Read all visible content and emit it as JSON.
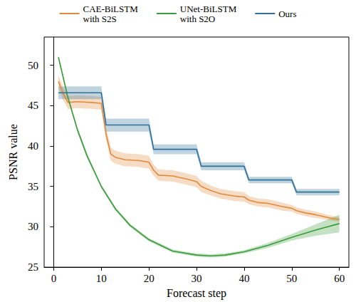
{
  "chart_data": {
    "type": "line",
    "x_label": "Forecast step",
    "y_label": "PSNR value",
    "xlim": [
      -2,
      62
    ],
    "ylim": [
      25,
      53.5
    ],
    "xticks": [
      0,
      10,
      20,
      30,
      40,
      50,
      60
    ],
    "yticks": [
      25,
      30,
      35,
      40,
      45,
      50
    ],
    "grid": false,
    "legend": "top",
    "series": [
      {
        "name": "CAE-BiLSTM\nwith S2S",
        "color": "#e08a3c",
        "x": [
          1,
          2,
          3,
          5,
          8,
          10,
          11,
          12,
          13,
          15,
          18,
          20,
          21,
          22,
          25,
          28,
          30,
          31,
          33,
          35,
          38,
          40,
          41,
          43,
          45,
          48,
          50,
          51,
          53,
          55,
          58,
          60
        ],
        "values": [
          48.0,
          46.5,
          45.4,
          45.5,
          45.4,
          45.3,
          41.5,
          39.0,
          38.6,
          38.3,
          38.2,
          38.0,
          37.0,
          36.4,
          36.3,
          35.9,
          35.6,
          35.0,
          34.5,
          34.1,
          33.8,
          33.7,
          33.3,
          33.0,
          32.9,
          32.5,
          32.3,
          32.0,
          31.7,
          31.5,
          31.1,
          30.9
        ],
        "lower": [
          47.2,
          45.7,
          44.6,
          44.7,
          44.6,
          44.5,
          40.7,
          38.2,
          37.8,
          37.5,
          37.4,
          37.2,
          36.3,
          35.7,
          35.6,
          35.2,
          34.9,
          34.3,
          33.9,
          33.5,
          33.2,
          33.1,
          32.8,
          32.5,
          32.4,
          32.0,
          31.9,
          31.6,
          31.3,
          31.1,
          30.8,
          30.6
        ],
        "upper": [
          48.8,
          47.3,
          46.2,
          46.3,
          46.2,
          46.1,
          42.3,
          39.8,
          39.4,
          39.1,
          39.0,
          38.8,
          37.7,
          37.1,
          37.0,
          36.6,
          36.3,
          35.7,
          35.1,
          34.7,
          34.4,
          34.3,
          33.8,
          33.5,
          33.4,
          33.0,
          32.7,
          32.4,
          32.1,
          31.9,
          31.4,
          31.2
        ]
      },
      {
        "name": "UNet-BiLSTM\nwith S2O",
        "color": "#3a9c3a",
        "x": [
          1,
          3,
          5,
          7,
          10,
          13,
          16,
          20,
          25,
          30,
          33,
          36,
          40,
          45,
          50,
          55,
          60
        ],
        "values": [
          51.0,
          46.0,
          42.0,
          38.8,
          35.0,
          32.2,
          30.2,
          28.4,
          27.0,
          26.5,
          26.4,
          26.5,
          26.9,
          27.7,
          28.7,
          29.6,
          30.4
        ],
        "lower": [
          50.7,
          45.7,
          41.7,
          38.5,
          34.8,
          32.0,
          30.0,
          28.2,
          26.8,
          26.3,
          26.2,
          26.3,
          26.7,
          27.4,
          28.3,
          28.9,
          29.3
        ],
        "upper": [
          51.3,
          46.3,
          42.3,
          39.1,
          35.2,
          32.4,
          30.4,
          28.6,
          27.2,
          26.7,
          26.6,
          26.7,
          27.1,
          28.0,
          29.1,
          30.3,
          31.5
        ]
      },
      {
        "name": "Ours",
        "color": "#2f6f99",
        "x": [
          1,
          10,
          11,
          20,
          21,
          30,
          31,
          40,
          41,
          50,
          51,
          60
        ],
        "values": [
          46.6,
          46.6,
          42.6,
          42.6,
          39.6,
          39.6,
          37.5,
          37.5,
          35.8,
          35.8,
          34.3,
          34.3
        ],
        "lower": [
          45.8,
          45.8,
          41.8,
          41.8,
          39.0,
          39.0,
          37.0,
          37.0,
          35.4,
          35.4,
          33.9,
          33.9
        ],
        "upper": [
          47.4,
          47.4,
          43.4,
          43.4,
          40.2,
          40.2,
          38.0,
          38.0,
          36.2,
          36.2,
          34.7,
          34.7
        ]
      }
    ]
  }
}
